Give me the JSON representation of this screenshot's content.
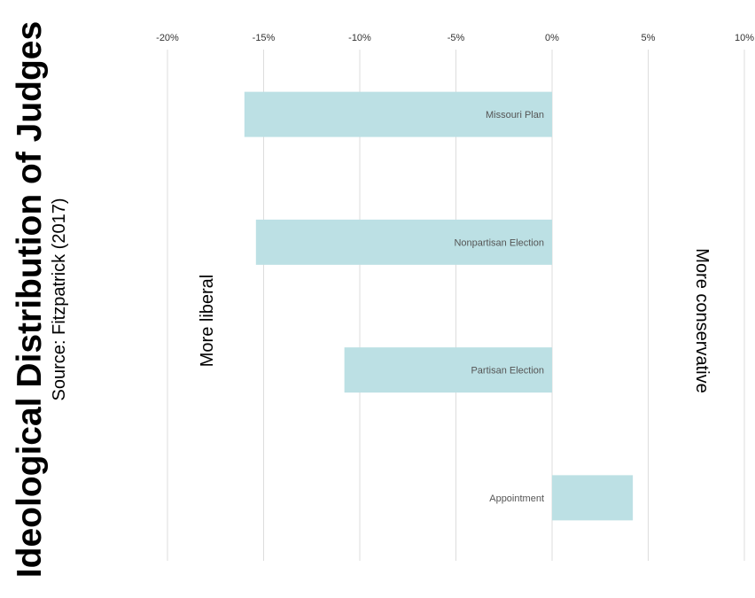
{
  "chart_data": {
    "type": "bar",
    "orientation": "horizontal",
    "title": "Ideological Distribution of Judges",
    "subtitle": "Source: Fitzpatrick (2017)",
    "categories": [
      "Missouri Plan",
      "Nonpartisan Election",
      "Partisan Election",
      "Appointment"
    ],
    "values": [
      -16,
      -15.4,
      -10.8,
      4.2
    ],
    "xlim": [
      -20,
      10
    ],
    "tick_values": [
      -20,
      -15,
      -10,
      -5,
      0,
      5,
      10
    ],
    "tick_labels": [
      "-20%",
      "-15%",
      "-10%",
      "-5%",
      "0%",
      "5%",
      "10%"
    ],
    "annotations": {
      "left": "More liberal",
      "right": "More conservative"
    },
    "grid": true,
    "bar_color": "#bce0e4"
  }
}
